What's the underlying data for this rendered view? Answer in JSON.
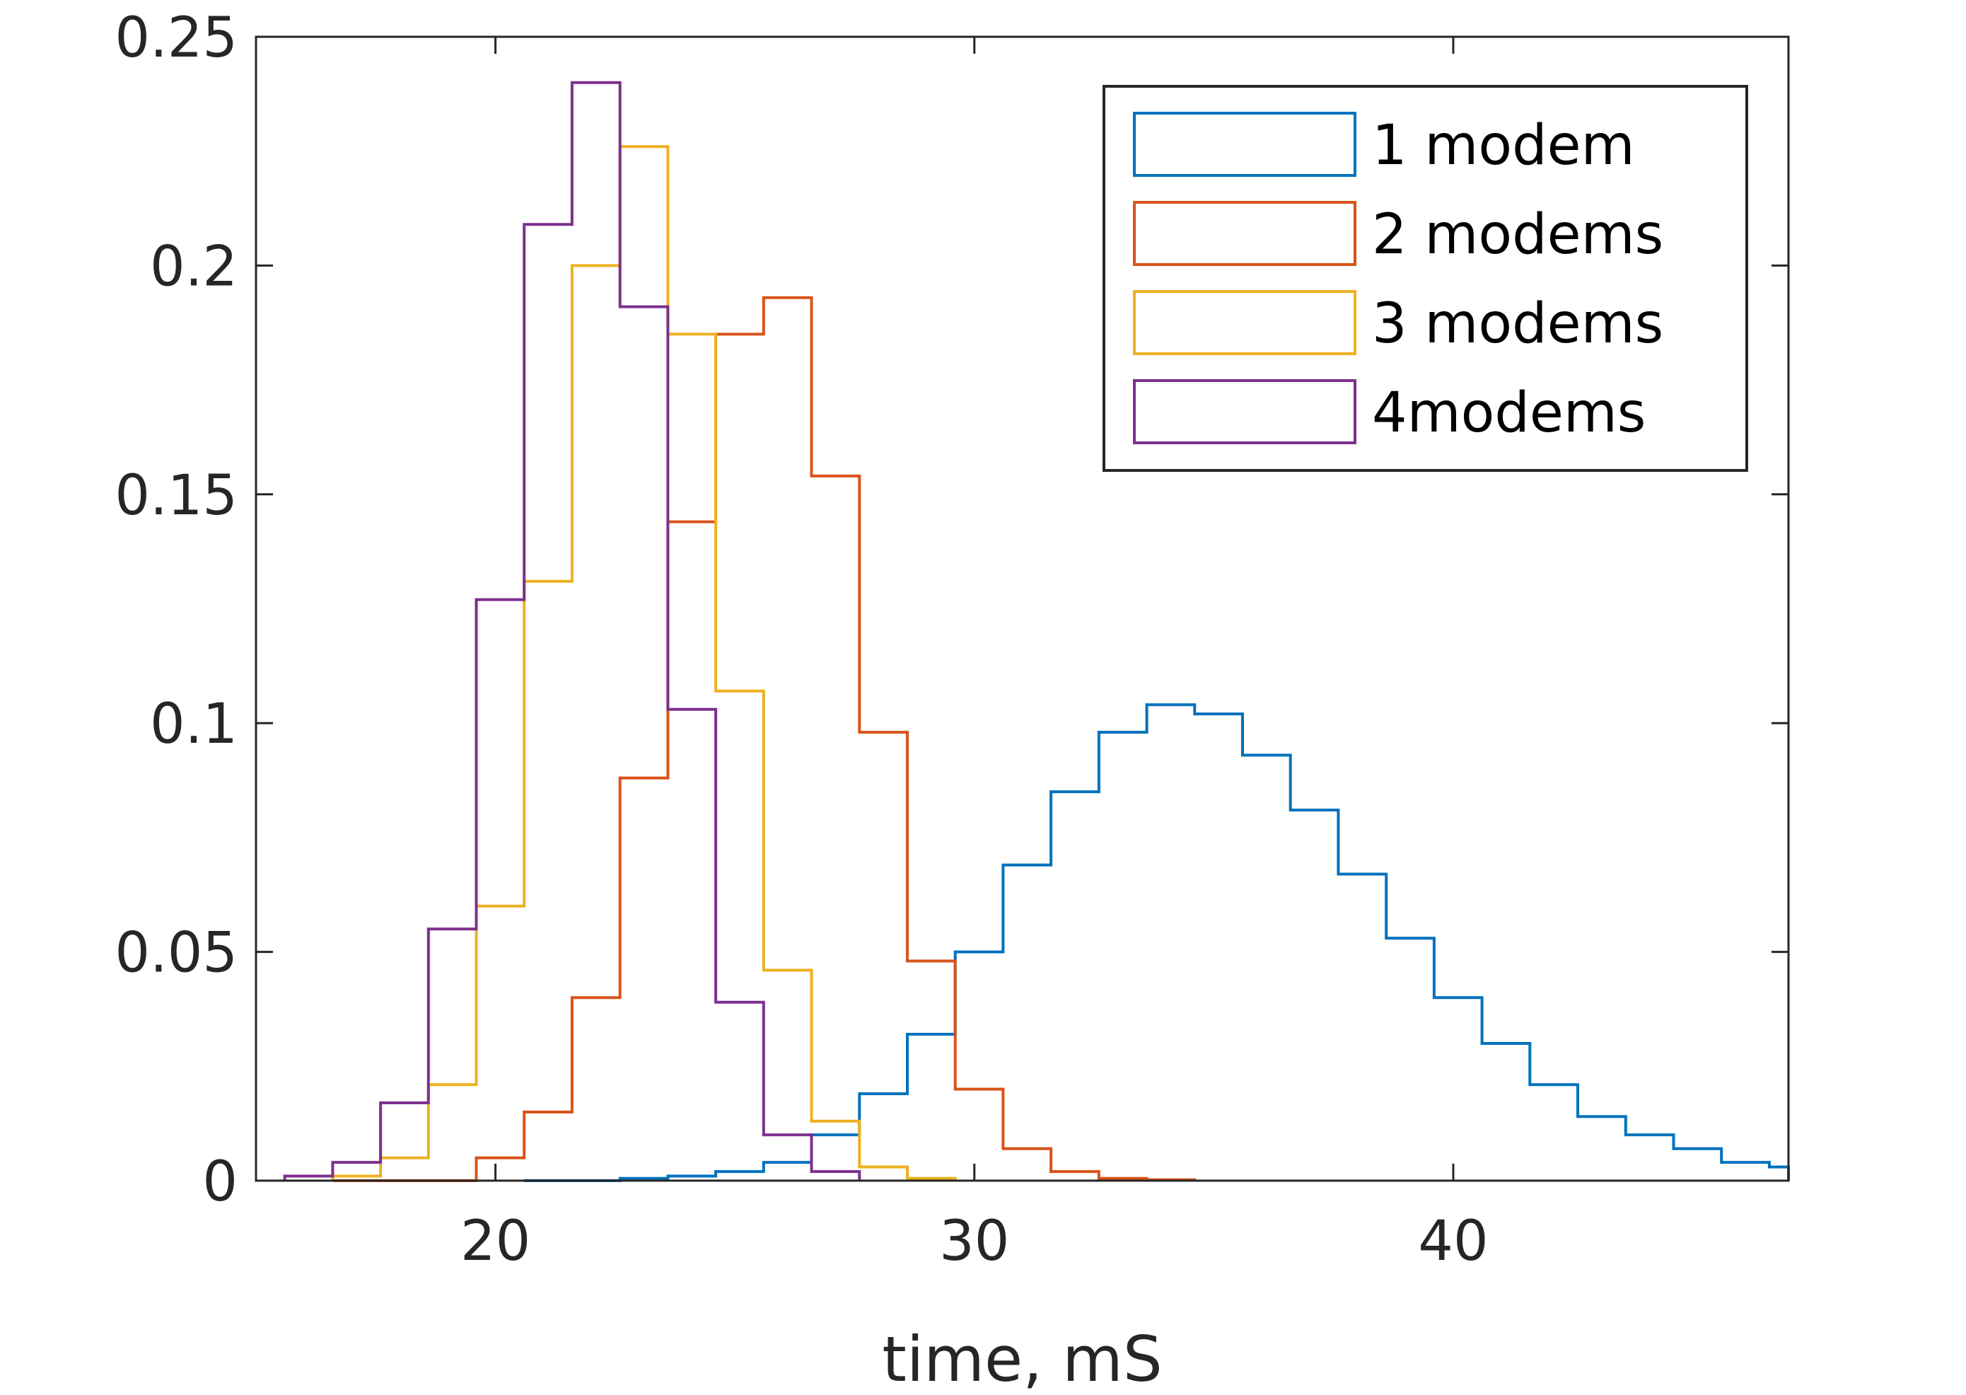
{
  "chart_data": {
    "type": "histogram",
    "title": "",
    "xlabel": "time, mS",
    "ylabel": "",
    "xlim": [
      15,
      47
    ],
    "ylim": [
      0,
      0.25
    ],
    "xticks": [
      20,
      30,
      40
    ],
    "yticks": [
      0,
      0.05,
      0.1,
      0.15,
      0.2,
      0.25
    ],
    "xtick_labels": [
      "20",
      "30",
      "40"
    ],
    "ytick_labels": [
      "0",
      "0.05",
      "0.1",
      "0.15",
      "0.2",
      "0.25"
    ],
    "legend_position": "top-right",
    "grid": false,
    "bin_width": 1,
    "series": [
      {
        "name": "1 modem",
        "color": "#0072BD",
        "bin_start": 20.6,
        "values": [
          0,
          0,
          0.0005,
          0.001,
          0.002,
          0.004,
          0.01,
          0.019,
          0.032,
          0.05,
          0.069,
          0.085,
          0.098,
          0.104,
          0.102,
          0.093,
          0.081,
          0.067,
          0.053,
          0.04,
          0.03,
          0.021,
          0.014,
          0.01,
          0.007,
          0.004,
          0.003
        ]
      },
      {
        "name": "2 modems",
        "color": "#D95319",
        "bin_start": 16.6,
        "values": [
          0,
          0,
          0,
          0.005,
          0.015,
          0.04,
          0.088,
          0.144,
          0.185,
          0.193,
          0.154,
          0.098,
          0.048,
          0.02,
          0.007,
          0.002,
          0.0005,
          0.0002
        ]
      },
      {
        "name": "3 modems",
        "color": "#EDB120",
        "bin_start": 16.6,
        "values": [
          0.001,
          0.005,
          0.021,
          0.06,
          0.131,
          0.2,
          0.226,
          0.185,
          0.107,
          0.046,
          0.013,
          0.003,
          0.0005
        ]
      },
      {
        "name": "4modems",
        "color": "#7E2F8E",
        "bin_start": 15.6,
        "values": [
          0.001,
          0.004,
          0.017,
          0.055,
          0.127,
          0.209,
          0.24,
          0.191,
          0.103,
          0.039,
          0.01,
          0.002
        ]
      }
    ]
  }
}
